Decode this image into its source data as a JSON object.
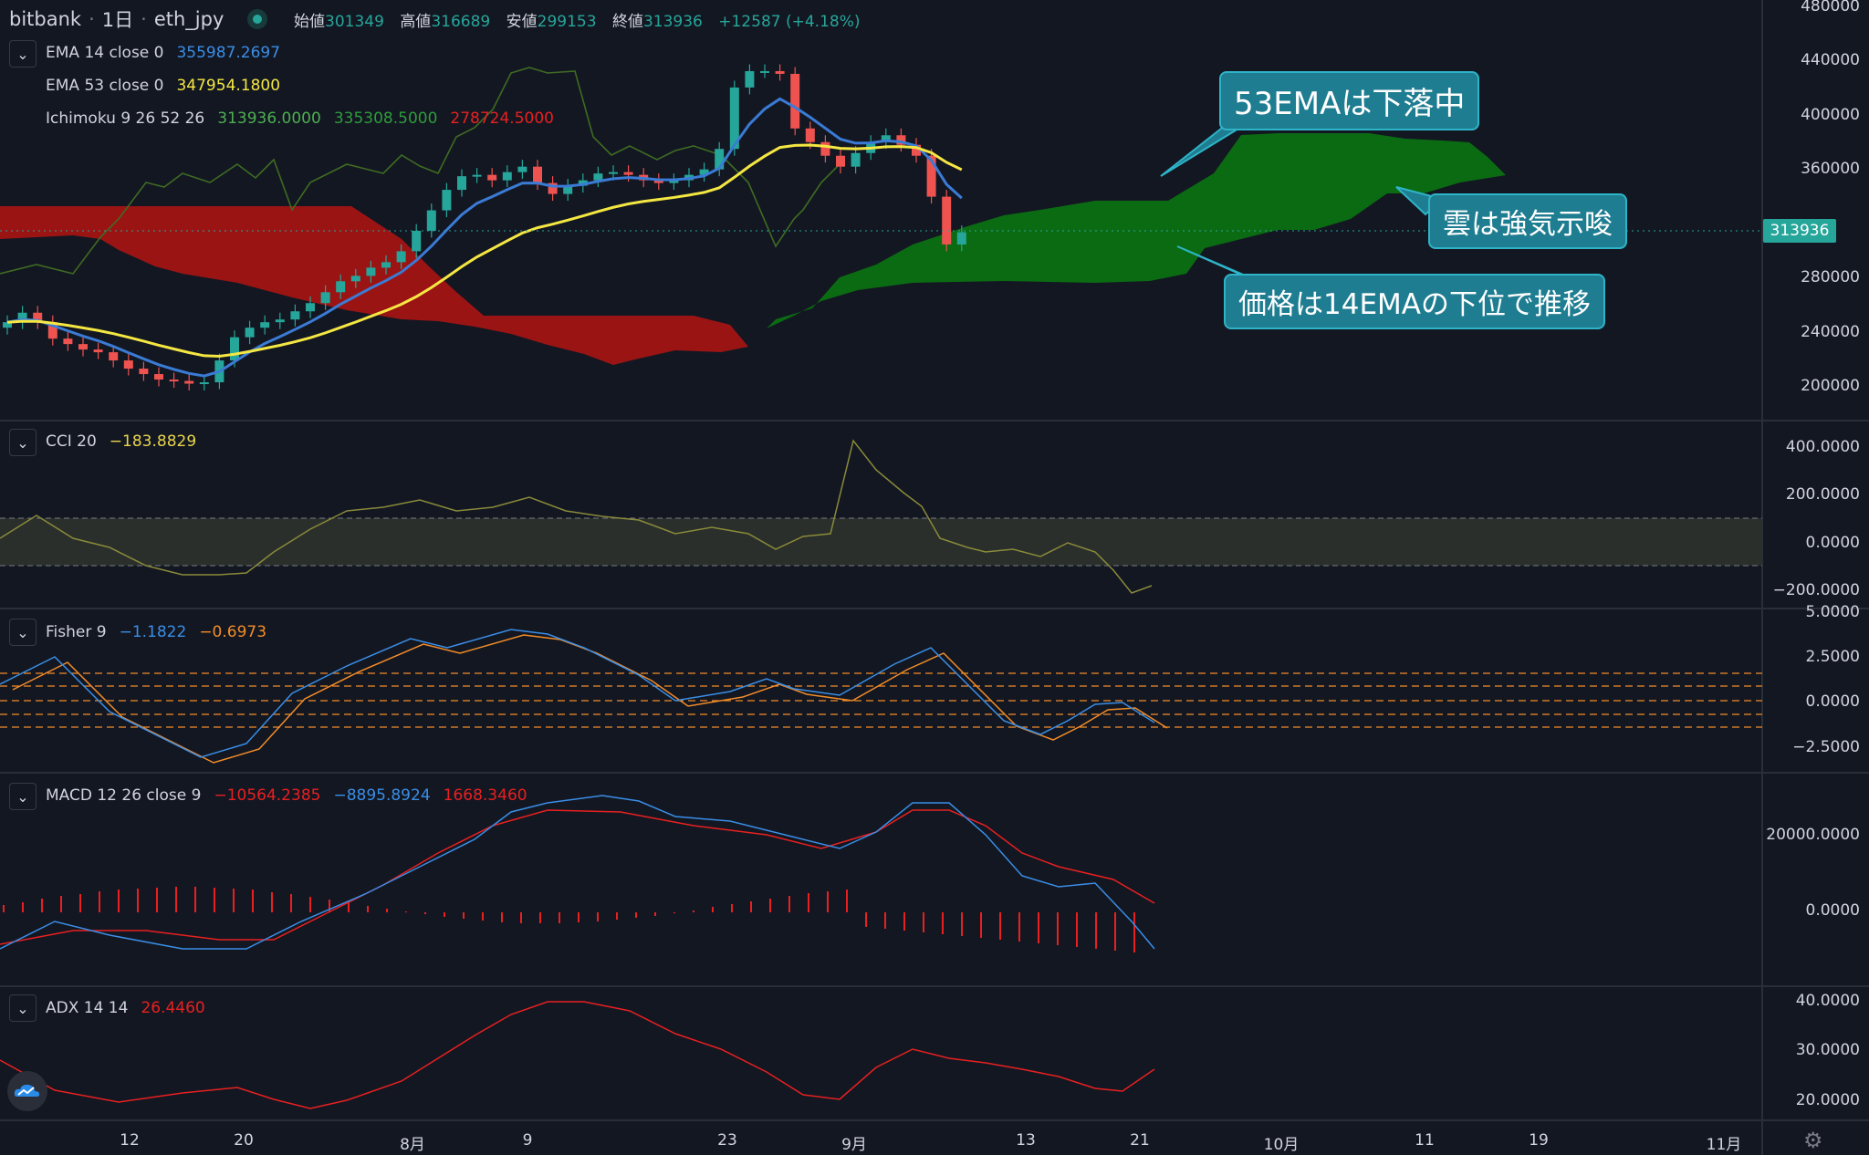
{
  "header": {
    "exchange": "bitbank",
    "interval": "1日",
    "symbol": "eth_jpy",
    "ohlc": [
      {
        "k": "始値",
        "v": "301349"
      },
      {
        "k": "高値",
        "v": "316689"
      },
      {
        "k": "安値",
        "v": "299153"
      },
      {
        "k": "終値",
        "v": "313936"
      }
    ],
    "change": "+12587 (+4.18%)"
  },
  "legends": {
    "ema14": {
      "label": "EMA 14 close 0",
      "value": "355987.2697"
    },
    "ema53": {
      "label": "EMA 53 close 0",
      "value": "347954.1800"
    },
    "ichimoku": {
      "label": "Ichimoku 9 26 52 26",
      "v1": "313936.0000",
      "v2": "335308.5000",
      "v3": "278724.5000"
    },
    "cci": {
      "label": "CCI 20",
      "value": "−183.8829"
    },
    "fisher": {
      "label": "Fisher 9",
      "v1": "−1.1822",
      "v2": "−0.6973"
    },
    "macd": {
      "label": "MACD 12 26 close 9",
      "v1": "−10564.2385",
      "v2": "−8895.8924",
      "v3": "1668.3460"
    },
    "adx": {
      "label": "ADX 14 14",
      "value": "26.4460"
    }
  },
  "axes": {
    "price": [
      "480000",
      "440000",
      "400000",
      "360000",
      "280000",
      "240000",
      "200000"
    ],
    "last_price": "313936",
    "cci": [
      "400.0000",
      "200.0000",
      "0.0000",
      "−200.0000"
    ],
    "fisher": [
      "5.0000",
      "2.5000",
      "0.0000",
      "−2.5000"
    ],
    "macd": [
      "20000.0000",
      "0.0000"
    ],
    "adx": [
      "40.0000",
      "30.0000",
      "20.0000"
    ],
    "time": [
      "12",
      "20",
      "8月",
      "9",
      "23",
      "9月",
      "13",
      "21",
      "10月",
      "11",
      "19",
      "11月"
    ]
  },
  "annotations": {
    "a1": "53EMAは下落中",
    "a2": "雲は強気示唆",
    "a3": "価格は14EMAの下位で推移"
  },
  "colors": {
    "bg": "#131722",
    "up": "#26a69a",
    "down": "#ef5350",
    "ema14": "#3a7bd5",
    "ema53": "#f5e742",
    "kumo_bull": "#0b6b12",
    "kumo_bear": "#9b1414"
  },
  "chart_data": [
    {
      "type": "candlestick",
      "title": "eth_jpy 1日",
      "y_ticks": [
        200000,
        240000,
        280000,
        360000,
        400000,
        440000,
        480000
      ],
      "close_approx": [
        248000,
        255000,
        248000,
        236000,
        232000,
        228000,
        226000,
        220000,
        214000,
        210000,
        206000,
        205000,
        203000,
        204000,
        220000,
        237000,
        244000,
        248000,
        250000,
        256000,
        262000,
        270000,
        278000,
        282000,
        288000,
        292000,
        300000,
        315000,
        330000,
        345000,
        355000,
        356000,
        352000,
        358000,
        362000,
        350000,
        342000,
        348000,
        352000,
        357000,
        358000,
        356000,
        352000,
        350000,
        352000,
        356000,
        360000,
        375000,
        420000,
        432000,
        432000,
        430000,
        390000,
        380000,
        370000,
        362000,
        372000,
        380000,
        385000,
        378000,
        370000,
        340000,
        305000,
        313936
      ]
    },
    {
      "type": "line",
      "title": "CCI 20",
      "series": [
        {
          "name": "CCI 20",
          "last": -183.8829
        }
      ],
      "y_ticks": [
        -200,
        0,
        200,
        400
      ]
    },
    {
      "type": "line",
      "title": "Fisher 9",
      "series": [
        {
          "name": "Fisher",
          "last": -1.1822
        },
        {
          "name": "Trigger",
          "last": -0.6973
        }
      ],
      "y_ticks": [
        -2.5,
        0,
        2.5,
        5.0
      ]
    },
    {
      "type": "line",
      "title": "MACD 12 26 close 9",
      "series": [
        {
          "name": "Histogram",
          "last": -10564.2385
        },
        {
          "name": "MACD",
          "last": -8895.8924
        },
        {
          "name": "Signal",
          "last": 1668.346
        }
      ],
      "y_ticks": [
        0,
        20000
      ]
    },
    {
      "type": "line",
      "title": "ADX 14 14",
      "series": [
        {
          "name": "ADX",
          "last": 26.446
        }
      ],
      "y_ticks": [
        20,
        30,
        40
      ]
    }
  ]
}
